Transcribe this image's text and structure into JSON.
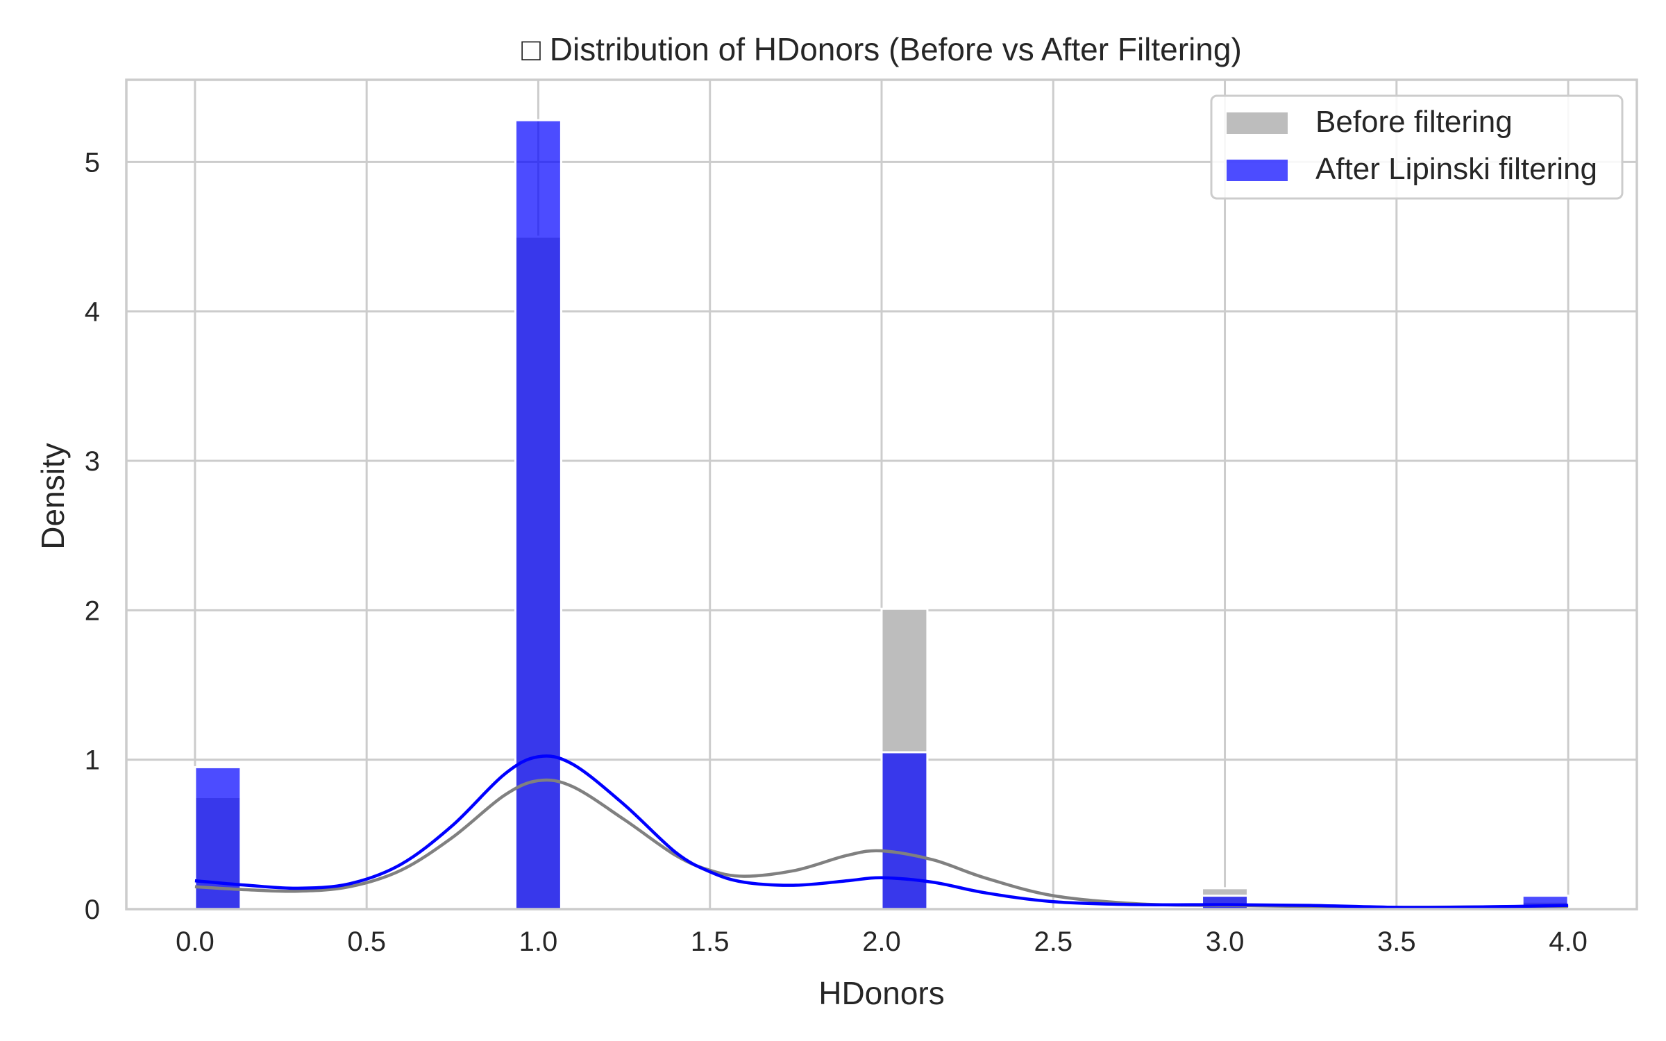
{
  "chart_data": {
    "type": "histogram",
    "title": "□ Distribution of HDonors (Before vs After Filtering)",
    "xlabel": "HDonors",
    "ylabel": "Density",
    "xlim": [
      -0.2,
      4.2
    ],
    "ylim": [
      0,
      5.55
    ],
    "xticks": [
      "0.0",
      "0.5",
      "1.0",
      "1.5",
      "2.0",
      "2.5",
      "3.0",
      "3.5",
      "4.0"
    ],
    "xtick_values": [
      0.0,
      0.5,
      1.0,
      1.5,
      2.0,
      2.5,
      3.0,
      3.5,
      4.0
    ],
    "yticks": [
      "0",
      "1",
      "2",
      "3",
      "4",
      "5"
    ],
    "ytick_values": [
      0,
      1,
      2,
      3,
      4,
      5
    ],
    "grid": true,
    "legend_position": "top-right",
    "bin_width": 0.1333,
    "series": [
      {
        "name": "Before filtering",
        "color": "#bdbdbd",
        "kde_color": "#808080",
        "bins": [
          {
            "x0": 0.0,
            "value": 0.75
          },
          {
            "x0": 0.9333,
            "value": 4.5
          },
          {
            "x0": 2.0,
            "value": 2.01
          },
          {
            "x0": 2.9333,
            "value": 0.14
          },
          {
            "x0": 3.8667,
            "value": 0.05
          }
        ],
        "kde": [
          [
            0.0,
            0.15
          ],
          [
            0.15,
            0.13
          ],
          [
            0.3,
            0.12
          ],
          [
            0.45,
            0.15
          ],
          [
            0.6,
            0.26
          ],
          [
            0.75,
            0.48
          ],
          [
            0.9,
            0.76
          ],
          [
            1.0,
            0.86
          ],
          [
            1.1,
            0.82
          ],
          [
            1.25,
            0.6
          ],
          [
            1.4,
            0.36
          ],
          [
            1.5,
            0.26
          ],
          [
            1.6,
            0.22
          ],
          [
            1.75,
            0.26
          ],
          [
            1.9,
            0.36
          ],
          [
            2.0,
            0.39
          ],
          [
            2.15,
            0.33
          ],
          [
            2.3,
            0.21
          ],
          [
            2.5,
            0.09
          ],
          [
            2.75,
            0.035
          ],
          [
            3.0,
            0.025
          ],
          [
            3.25,
            0.018
          ],
          [
            3.5,
            0.012
          ],
          [
            3.75,
            0.015
          ],
          [
            4.0,
            0.02
          ]
        ]
      },
      {
        "name": "After Lipinski filtering",
        "color": "#0000ff",
        "kde_color": "#0000ff",
        "bins": [
          {
            "x0": 0.0,
            "value": 0.95
          },
          {
            "x0": 0.9333,
            "value": 5.28
          },
          {
            "x0": 2.0,
            "value": 1.05
          },
          {
            "x0": 2.9333,
            "value": 0.09
          },
          {
            "x0": 3.8667,
            "value": 0.09
          }
        ],
        "kde": [
          [
            0.0,
            0.19
          ],
          [
            0.15,
            0.16
          ],
          [
            0.3,
            0.14
          ],
          [
            0.45,
            0.17
          ],
          [
            0.6,
            0.3
          ],
          [
            0.75,
            0.56
          ],
          [
            0.9,
            0.9
          ],
          [
            1.0,
            1.02
          ],
          [
            1.1,
            0.97
          ],
          [
            1.25,
            0.7
          ],
          [
            1.4,
            0.38
          ],
          [
            1.5,
            0.25
          ],
          [
            1.6,
            0.18
          ],
          [
            1.75,
            0.16
          ],
          [
            1.9,
            0.19
          ],
          [
            2.0,
            0.21
          ],
          [
            2.15,
            0.18
          ],
          [
            2.3,
            0.11
          ],
          [
            2.5,
            0.05
          ],
          [
            2.75,
            0.03
          ],
          [
            3.0,
            0.03
          ],
          [
            3.25,
            0.025
          ],
          [
            3.5,
            0.012
          ],
          [
            3.75,
            0.015
          ],
          [
            4.0,
            0.025
          ]
        ]
      }
    ]
  }
}
